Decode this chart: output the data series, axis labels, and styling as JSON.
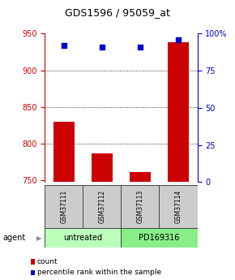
{
  "title": "GDS1596 / 95059_at",
  "samples": [
    "GSM37111",
    "GSM37112",
    "GSM37113",
    "GSM37114"
  ],
  "counts": [
    830,
    787,
    762,
    938
  ],
  "percentiles": [
    92,
    91,
    91,
    96
  ],
  "ylim_left": [
    748,
    950
  ],
  "ylim_right": [
    0,
    100
  ],
  "yticks_left": [
    750,
    800,
    850,
    900,
    950
  ],
  "yticks_right": [
    0,
    25,
    50,
    75,
    100
  ],
  "ytick_labels_right": [
    "0",
    "25",
    "50",
    "75",
    "100%"
  ],
  "bar_color": "#cc0000",
  "dot_color": "#0000cc",
  "agent_groups": [
    {
      "label": "untreated",
      "samples": [
        0,
        1
      ],
      "color": "#bbffbb"
    },
    {
      "label": "PD169316",
      "samples": [
        2,
        3
      ],
      "color": "#88ee88"
    }
  ],
  "agent_label": "agent",
  "legend_items": [
    {
      "color": "#cc0000",
      "label": "count"
    },
    {
      "color": "#0000cc",
      "label": "percentile rank within the sample"
    }
  ],
  "bar_width": 0.55,
  "dot_size": 18,
  "sample_box_color": "#cccccc",
  "title_fontsize": 9,
  "tick_fontsize": 7,
  "label_fontsize": 7,
  "legend_fontsize": 6.5
}
